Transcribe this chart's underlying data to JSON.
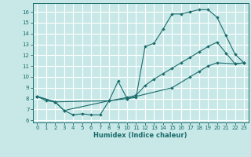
{
  "xlabel": "Humidex (Indice chaleur)",
  "bg_color": "#c8e8e8",
  "grid_color": "#ffffff",
  "line_color": "#1a6b6b",
  "xlim": [
    -0.5,
    23.5
  ],
  "ylim": [
    5.8,
    16.8
  ],
  "yticks": [
    6,
    7,
    8,
    9,
    10,
    11,
    12,
    13,
    14,
    15,
    16
  ],
  "xticks": [
    0,
    1,
    2,
    3,
    4,
    5,
    6,
    7,
    8,
    9,
    10,
    11,
    12,
    13,
    14,
    15,
    16,
    17,
    18,
    19,
    20,
    21,
    22,
    23
  ],
  "line1_x": [
    0,
    1,
    2,
    3,
    4,
    5,
    6,
    7,
    8,
    9,
    10,
    11,
    12,
    13,
    14,
    15,
    16,
    17,
    18,
    19,
    20,
    21,
    22,
    23
  ],
  "line1_y": [
    8.2,
    7.8,
    7.7,
    6.9,
    6.5,
    6.6,
    6.5,
    6.5,
    7.8,
    9.6,
    8.0,
    8.1,
    12.8,
    13.1,
    14.4,
    15.8,
    15.8,
    16.0,
    16.2,
    16.2,
    15.5,
    13.8,
    12.1,
    11.3
  ],
  "line2_x": [
    0,
    2,
    3,
    8,
    10,
    11,
    12,
    13,
    14,
    15,
    16,
    17,
    18,
    19,
    20,
    21,
    22,
    23
  ],
  "line2_y": [
    8.2,
    7.7,
    6.9,
    7.8,
    8.1,
    8.3,
    9.2,
    9.8,
    10.3,
    10.8,
    11.3,
    11.8,
    12.3,
    12.8,
    13.2,
    12.2,
    11.2,
    11.3
  ],
  "line3_x": [
    0,
    2,
    8,
    10,
    15,
    17,
    18,
    19,
    20,
    22,
    23
  ],
  "line3_y": [
    8.2,
    7.7,
    7.8,
    8.0,
    9.0,
    10.0,
    10.5,
    11.0,
    11.3,
    11.2,
    11.3
  ]
}
